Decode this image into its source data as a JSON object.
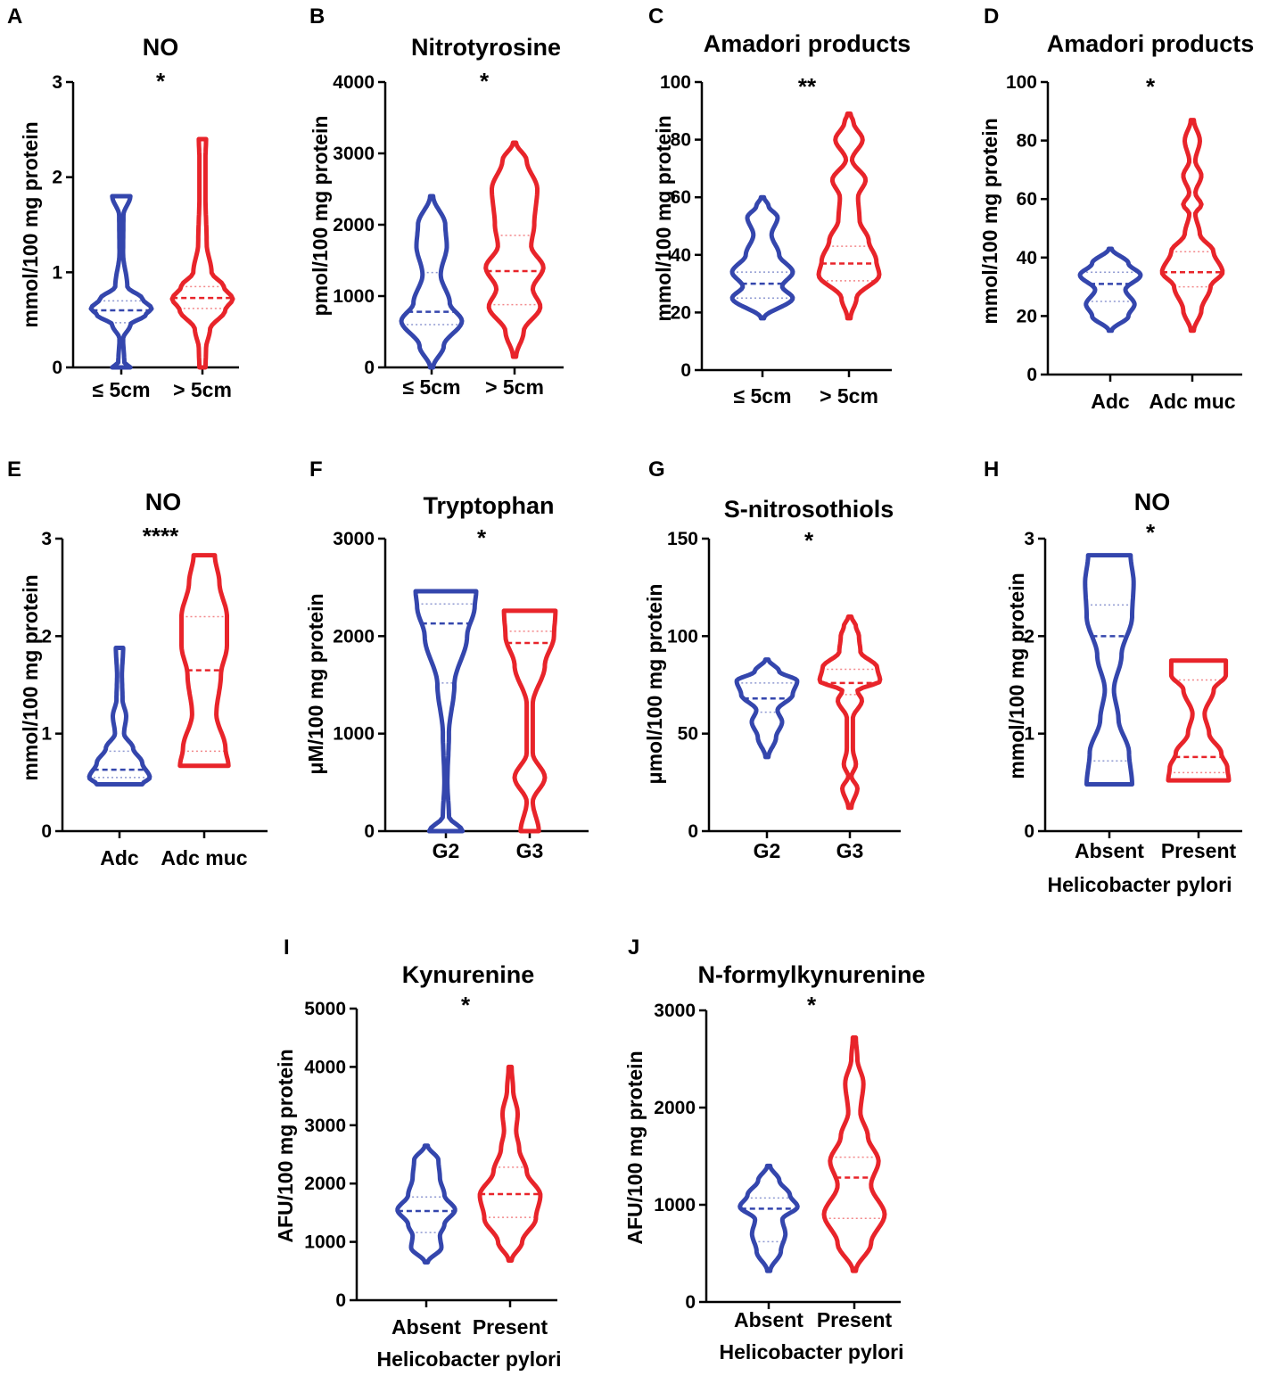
{
  "colors": {
    "group1": "#3446ad",
    "group2": "#e8242a",
    "axis": "#000000"
  },
  "chart_data": [
    {
      "type": "violin",
      "panel": "A",
      "title": "NO",
      "significance": "*",
      "ylabel": "mmol/100 mg protein",
      "xlabel": "",
      "categories": [
        "≤ 5cm",
        "> 5cm"
      ],
      "ylim": [
        0,
        3
      ],
      "yticks": [
        0,
        1,
        2,
        3
      ],
      "series": [
        {
          "name": "≤ 5cm",
          "median": 0.6,
          "q1": 0.47,
          "q3": 0.7,
          "profile": [
            [
              0,
              0.3
            ],
            [
              0.05,
              0.1
            ],
            [
              0.3,
              0.06
            ],
            [
              0.45,
              0.3
            ],
            [
              0.55,
              0.8
            ],
            [
              0.62,
              1
            ],
            [
              0.72,
              0.7
            ],
            [
              0.85,
              0.2
            ],
            [
              1.2,
              0.06
            ],
            [
              1.6,
              0.07
            ],
            [
              1.8,
              0.3
            ]
          ]
        },
        {
          "name": "> 5cm",
          "median": 0.73,
          "q1": 0.62,
          "q3": 0.85,
          "profile": [
            [
              0,
              0.1
            ],
            [
              0.2,
              0.12
            ],
            [
              0.4,
              0.25
            ],
            [
              0.6,
              0.75
            ],
            [
              0.72,
              1
            ],
            [
              0.85,
              0.7
            ],
            [
              1,
              0.3
            ],
            [
              1.3,
              0.14
            ],
            [
              1.8,
              0.1
            ],
            [
              2.2,
              0.1
            ],
            [
              2.4,
              0.12
            ]
          ]
        }
      ]
    },
    {
      "type": "violin",
      "panel": "B",
      "title": "Nitrotyrosine",
      "significance": "*",
      "ylabel": "pmol/100 mg protein",
      "xlabel": "",
      "categories": [
        "≤ 5cm",
        "> 5cm"
      ],
      "ylim": [
        0,
        4000
      ],
      "yticks": [
        0,
        1000,
        2000,
        3000,
        4000
      ],
      "series": [
        {
          "name": "≤ 5cm",
          "median": 780,
          "q1": 600,
          "q3": 1330,
          "profile": [
            [
              0,
              0.05
            ],
            [
              300,
              0.4
            ],
            [
              650,
              1
            ],
            [
              900,
              0.6
            ],
            [
              1300,
              0.3
            ],
            [
              1700,
              0.5
            ],
            [
              2000,
              0.45
            ],
            [
              2400,
              0.05
            ]
          ]
        },
        {
          "name": "> 5cm",
          "median": 1350,
          "q1": 880,
          "q3": 1850,
          "profile": [
            [
              150,
              0.05
            ],
            [
              500,
              0.3
            ],
            [
              850,
              0.85
            ],
            [
              1100,
              0.6
            ],
            [
              1400,
              0.95
            ],
            [
              1700,
              0.55
            ],
            [
              2000,
              0.65
            ],
            [
              2500,
              0.75
            ],
            [
              2900,
              0.4
            ],
            [
              3150,
              0.05
            ]
          ]
        }
      ]
    },
    {
      "type": "violin",
      "panel": "C",
      "title": "Amadori products",
      "significance": "**",
      "ylabel": "mmol/100 mg protein",
      "xlabel": "",
      "categories": [
        "≤ 5cm",
        "> 5cm"
      ],
      "ylim": [
        0,
        100
      ],
      "yticks": [
        0,
        20,
        40,
        60,
        80,
        100
      ],
      "series": [
        {
          "name": "≤ 5cm",
          "median": 30,
          "q1": 25,
          "q3": 34,
          "profile": [
            [
              18,
              0.05
            ],
            [
              25,
              1
            ],
            [
              29,
              0.65
            ],
            [
              34,
              1
            ],
            [
              40,
              0.55
            ],
            [
              47,
              0.3
            ],
            [
              53,
              0.5
            ],
            [
              57,
              0.2
            ],
            [
              60,
              0.05
            ]
          ]
        },
        {
          "name": "> 5cm",
          "median": 37,
          "q1": 31,
          "q3": 43,
          "profile": [
            [
              18,
              0.05
            ],
            [
              25,
              0.25
            ],
            [
              33,
              1
            ],
            [
              38,
              0.9
            ],
            [
              45,
              0.65
            ],
            [
              52,
              0.35
            ],
            [
              60,
              0.3
            ],
            [
              66,
              0.55
            ],
            [
              73,
              0.1
            ],
            [
              80,
              0.45
            ],
            [
              86,
              0.15
            ],
            [
              89,
              0.05
            ]
          ]
        }
      ]
    },
    {
      "type": "violin",
      "panel": "D",
      "title": "Amadori products",
      "significance": "*",
      "ylabel": "mmol/100 mg protein",
      "xlabel": "",
      "categories": [
        "Adc",
        "Adc muc"
      ],
      "ylim": [
        0,
        100
      ],
      "yticks": [
        0,
        20,
        40,
        60,
        80,
        100
      ],
      "series": [
        {
          "name": "Adc",
          "median": 31,
          "q1": 25,
          "q3": 35,
          "profile": [
            [
              15,
              0.05
            ],
            [
              20,
              0.6
            ],
            [
              24,
              0.8
            ],
            [
              29,
              0.5
            ],
            [
              34,
              1
            ],
            [
              38,
              0.6
            ],
            [
              43,
              0.05
            ]
          ]
        },
        {
          "name": "Adc muc",
          "median": 35,
          "q1": 30,
          "q3": 42,
          "profile": [
            [
              15,
              0.05
            ],
            [
              22,
              0.3
            ],
            [
              30,
              0.6
            ],
            [
              35,
              1
            ],
            [
              42,
              0.7
            ],
            [
              48,
              0.25
            ],
            [
              55,
              0.1
            ],
            [
              58,
              0.3
            ],
            [
              62,
              0.1
            ],
            [
              68,
              0.3
            ],
            [
              73,
              0.1
            ],
            [
              80,
              0.25
            ],
            [
              87,
              0.05
            ]
          ]
        }
      ]
    },
    {
      "type": "violin",
      "panel": "E",
      "title": "NO",
      "significance": "****",
      "ylabel": "mmol/100 mg protein",
      "xlabel": "",
      "categories": [
        "Adc",
        "Adc muc"
      ],
      "ylim": [
        0,
        3
      ],
      "yticks": [
        0,
        1,
        2,
        3
      ],
      "series": [
        {
          "name": "Adc",
          "median": 0.63,
          "q1": 0.55,
          "q3": 0.82,
          "profile": [
            [
              0.48,
              0.75
            ],
            [
              0.55,
              1
            ],
            [
              0.7,
              0.75
            ],
            [
              0.85,
              0.45
            ],
            [
              1,
              0.15
            ],
            [
              1.18,
              0.22
            ],
            [
              1.35,
              0.1
            ],
            [
              1.6,
              0.08
            ],
            [
              1.88,
              0.12
            ]
          ]
        },
        {
          "name": "Adc muc",
          "median": 1.65,
          "q1": 0.82,
          "q3": 2.2,
          "profile": [
            [
              0.67,
              0.8
            ],
            [
              0.85,
              0.7
            ],
            [
              1.2,
              0.4
            ],
            [
              1.6,
              0.55
            ],
            [
              1.9,
              0.75
            ],
            [
              2.2,
              0.75
            ],
            [
              2.55,
              0.5
            ],
            [
              2.83,
              0.35
            ]
          ]
        }
      ]
    },
    {
      "type": "violin",
      "panel": "F",
      "title": "Tryptophan",
      "significance": "*",
      "ylabel": "μM/100 mg protein",
      "xlabel": "",
      "categories": [
        "G2",
        "G3"
      ],
      "ylim": [
        0,
        3000
      ],
      "yticks": [
        0,
        1000,
        2000,
        3000
      ],
      "series": [
        {
          "name": "G2",
          "median": 2130,
          "q1": 1520,
          "q3": 2330,
          "profile": [
            [
              0,
              0.55
            ],
            [
              150,
              0.1
            ],
            [
              500,
              0.05
            ],
            [
              1000,
              0.1
            ],
            [
              1500,
              0.28
            ],
            [
              2000,
              0.7
            ],
            [
              2300,
              0.95
            ],
            [
              2460,
              1
            ]
          ]
        },
        {
          "name": "G3",
          "median": 1930,
          "q1": 820,
          "q3": 2050,
          "profile": [
            [
              0,
              0.3
            ],
            [
              300,
              0.1
            ],
            [
              550,
              0.5
            ],
            [
              800,
              0.1
            ],
            [
              1300,
              0.1
            ],
            [
              1700,
              0.5
            ],
            [
              2000,
              0.8
            ],
            [
              2260,
              0.85
            ]
          ]
        }
      ]
    },
    {
      "type": "violin",
      "panel": "G",
      "title": "S-nitrosothiols",
      "significance": "*",
      "ylabel": "μmol/100 mg protein",
      "xlabel": "",
      "categories": [
        "G2",
        "G3"
      ],
      "ylim": [
        0,
        150
      ],
      "yticks": [
        0,
        50,
        100,
        150
      ],
      "series": [
        {
          "name": "G2",
          "median": 68,
          "q1": 61,
          "q3": 76,
          "profile": [
            [
              38,
              0.05
            ],
            [
              48,
              0.3
            ],
            [
              56,
              0.5
            ],
            [
              62,
              0.35
            ],
            [
              70,
              0.85
            ],
            [
              77,
              1
            ],
            [
              82,
              0.4
            ],
            [
              88,
              0.05
            ]
          ]
        },
        {
          "name": "G3",
          "median": 76,
          "q1": 70,
          "q3": 83,
          "profile": [
            [
              12,
              0.05
            ],
            [
              22,
              0.25
            ],
            [
              28,
              0.05
            ],
            [
              34,
              0.2
            ],
            [
              42,
              0.1
            ],
            [
              58,
              0.1
            ],
            [
              67,
              0.4
            ],
            [
              72,
              0.25
            ],
            [
              77,
              1
            ],
            [
              84,
              0.9
            ],
            [
              92,
              0.35
            ],
            [
              100,
              0.3
            ],
            [
              105,
              0.2
            ],
            [
              110,
              0.05
            ]
          ]
        }
      ]
    },
    {
      "type": "violin",
      "panel": "H",
      "title": "NO",
      "significance": "*",
      "ylabel": "mmol/100 mg protein",
      "xlabel": "Helicobacter pylori",
      "categories": [
        "Absent",
        "Present"
      ],
      "ylim": [
        0,
        3
      ],
      "yticks": [
        0,
        1,
        2,
        3
      ],
      "series": [
        {
          "name": "Absent",
          "median": 2.0,
          "q1": 0.72,
          "q3": 2.32,
          "profile": [
            [
              0.48,
              0.75
            ],
            [
              0.8,
              0.65
            ],
            [
              1.15,
              0.3
            ],
            [
              1.45,
              0.15
            ],
            [
              1.8,
              0.4
            ],
            [
              2.2,
              0.75
            ],
            [
              2.55,
              0.8
            ],
            [
              2.83,
              0.7
            ]
          ]
        },
        {
          "name": "Present",
          "median": 0.76,
          "q1": 0.6,
          "q3": 1.55,
          "profile": [
            [
              0.52,
              1
            ],
            [
              0.65,
              0.95
            ],
            [
              0.8,
              0.75
            ],
            [
              1.0,
              0.35
            ],
            [
              1.2,
              0.2
            ],
            [
              1.45,
              0.5
            ],
            [
              1.6,
              0.9
            ],
            [
              1.75,
              0.9
            ]
          ]
        }
      ]
    },
    {
      "type": "violin",
      "panel": "I",
      "title": "Kynurenine",
      "significance": "*",
      "ylabel": "AFU/100 mg protein",
      "xlabel": "Helicobacter pylori",
      "categories": [
        "Absent",
        "Present"
      ],
      "ylim": [
        0,
        5000
      ],
      "yticks": [
        0,
        1000,
        2000,
        3000,
        4000,
        5000
      ],
      "series": [
        {
          "name": "Absent",
          "median": 1530,
          "q1": 1160,
          "q3": 1770,
          "profile": [
            [
              650,
              0.05
            ],
            [
              900,
              0.5
            ],
            [
              1100,
              0.45
            ],
            [
              1300,
              0.6
            ],
            [
              1550,
              0.95
            ],
            [
              1800,
              0.6
            ],
            [
              2100,
              0.45
            ],
            [
              2400,
              0.4
            ],
            [
              2650,
              0.05
            ]
          ]
        },
        {
          "name": "Present",
          "median": 1820,
          "q1": 1420,
          "q3": 2280,
          "profile": [
            [
              680,
              0.05
            ],
            [
              1000,
              0.4
            ],
            [
              1400,
              0.85
            ],
            [
              1800,
              1
            ],
            [
              2200,
              0.55
            ],
            [
              2600,
              0.3
            ],
            [
              2900,
              0.2
            ],
            [
              3200,
              0.25
            ],
            [
              3600,
              0.1
            ],
            [
              4000,
              0.05
            ]
          ]
        }
      ]
    },
    {
      "type": "violin",
      "panel": "J",
      "title": "N-formylkynurenine",
      "significance": "*",
      "ylabel": "AFU/100 mg protein",
      "xlabel": "Helicobacter pylori",
      "categories": [
        "Absent",
        "Present"
      ],
      "ylim": [
        0,
        3000
      ],
      "yticks": [
        0,
        1000,
        2000,
        3000
      ],
      "series": [
        {
          "name": "Absent",
          "median": 960,
          "q1": 620,
          "q3": 1070,
          "profile": [
            [
              320,
              0.05
            ],
            [
              520,
              0.4
            ],
            [
              700,
              0.55
            ],
            [
              850,
              0.45
            ],
            [
              980,
              0.95
            ],
            [
              1100,
              0.7
            ],
            [
              1250,
              0.35
            ],
            [
              1400,
              0.05
            ]
          ]
        },
        {
          "name": "Present",
          "median": 1280,
          "q1": 860,
          "q3": 1490,
          "profile": [
            [
              320,
              0.05
            ],
            [
              600,
              0.55
            ],
            [
              900,
              1
            ],
            [
              1200,
              0.55
            ],
            [
              1450,
              0.8
            ],
            [
              1700,
              0.45
            ],
            [
              1950,
              0.2
            ],
            [
              2250,
              0.3
            ],
            [
              2500,
              0.1
            ],
            [
              2720,
              0.05
            ]
          ]
        }
      ]
    }
  ]
}
